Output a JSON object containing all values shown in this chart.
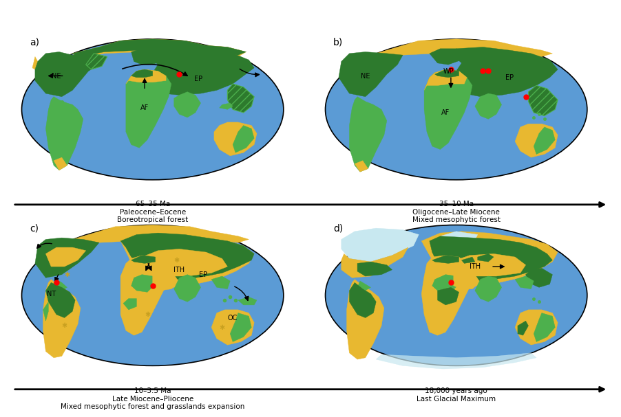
{
  "ocean_color": "#5b9bd5",
  "land_yellow": "#e8b830",
  "forest_dark": "#2d7a2d",
  "forest_light": "#4db04d",
  "ice_color": "#ddeeff",
  "glacier_color": "#c8e8f0",
  "background": "#ffffff",
  "fig_width": 8.82,
  "fig_height": 5.82,
  "panels": [
    {
      "label": "a)",
      "title": "65–35 Ma\nPaleocene–Eocene\nBoreotropical forest"
    },
    {
      "label": "b)",
      "title": "35–10 Ma\nOligocene–Late Miocene\nMixed mesophytic forest"
    },
    {
      "label": "c)",
      "title": "10–3.5 Ma\nLate Miocene–Pliocene\nMixed mesophytic forest and grasslands expansion"
    },
    {
      "label": "d)",
      "title": "18,000 years ago\nLast Glacial Maximum"
    }
  ]
}
